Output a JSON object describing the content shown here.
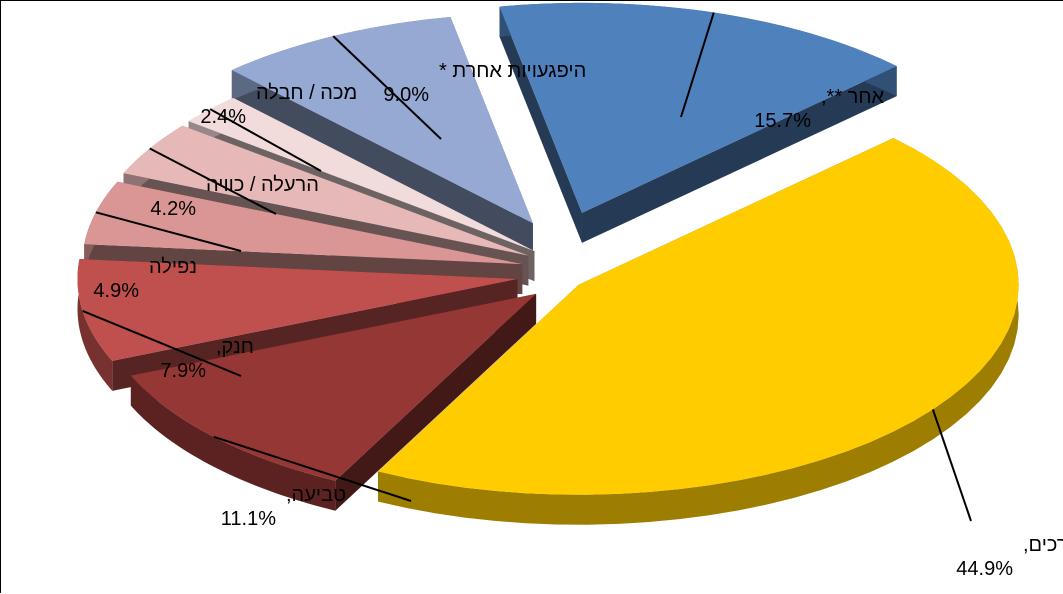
{
  "chart_data": {
    "type": "pie",
    "title": "",
    "slices": [
      {
        "label": "אחר **,",
        "value": 15.7,
        "display": "15.7%",
        "color": "#4F81BD"
      },
      {
        "label": "תאונת דרכים,",
        "value": 44.9,
        "display": "44.9%",
        "color": "#FFCC00"
      },
      {
        "label": "טביעה,",
        "value": 11.1,
        "display": "11.1%",
        "color": "#953735"
      },
      {
        "label": "חנק,",
        "value": 7.9,
        "display": "7.9%",
        "color": "#C0504D"
      },
      {
        "label": "נפילה",
        "value": 4.9,
        "display": "4.9%",
        "color": "#DA9694"
      },
      {
        "label": "הרעלה / כוויה",
        "value": 4.2,
        "display": "4.2%",
        "color": "#E6B9B8"
      },
      {
        "label": "מכה / חבלה",
        "value": 2.4,
        "display": "2.4%",
        "color": "#F2DCDB"
      },
      {
        "label": "היפגעויות אחרת *",
        "value": 9.0,
        "display": "9.0%",
        "color": "#95A9D3"
      }
    ]
  }
}
